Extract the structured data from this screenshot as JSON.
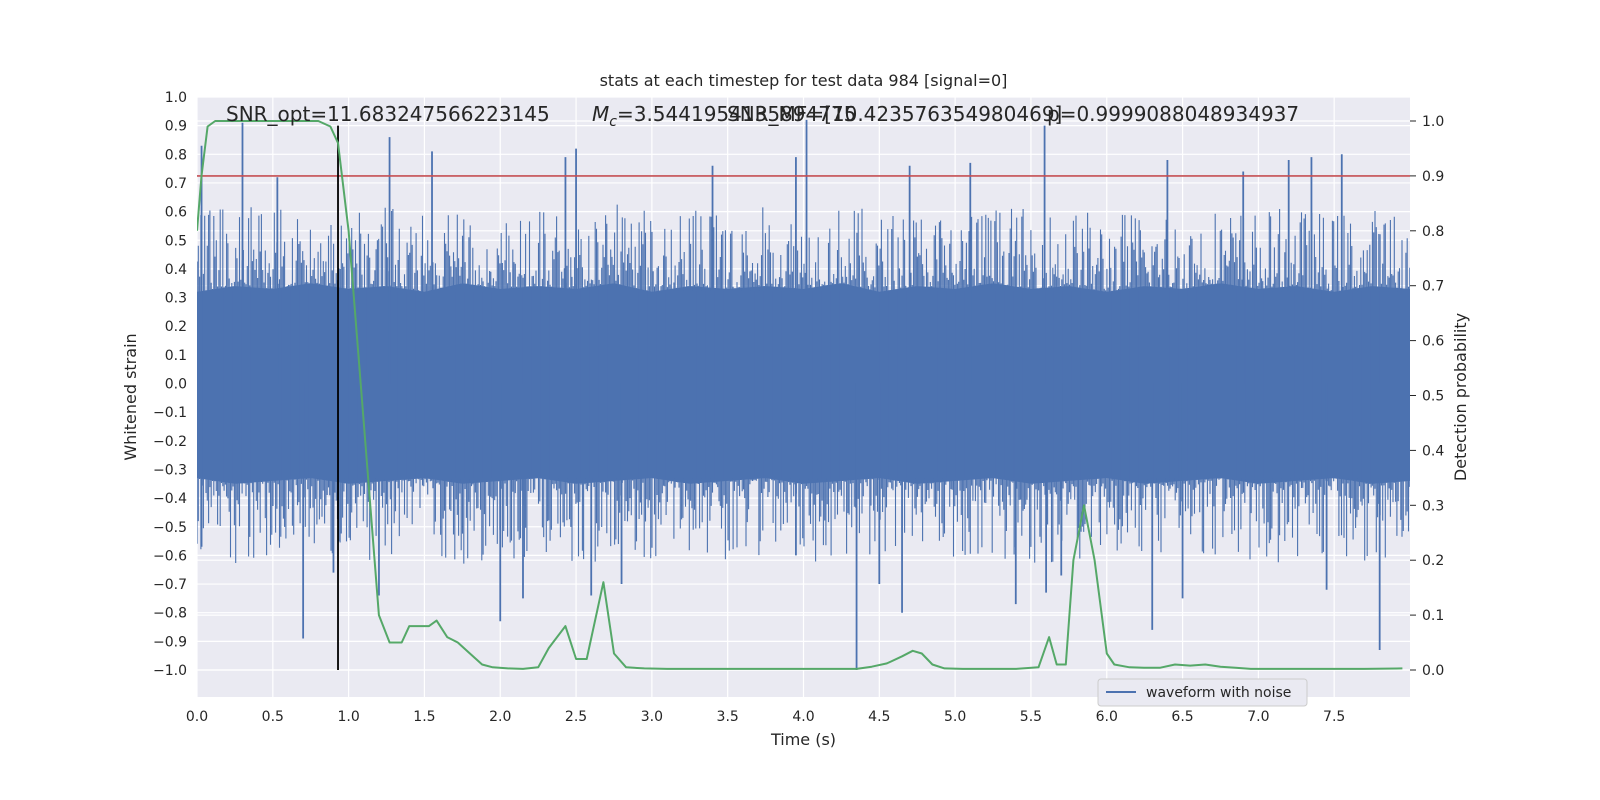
{
  "chart_data": {
    "type": "line",
    "title": "stats at each timestep for test data 984 [signal=0]",
    "xlabel": "Time (s)",
    "ylabel": "Whitened strain",
    "y2label": "Detection probability",
    "xlim": [
      0.0,
      8.0
    ],
    "ylim": [
      -1.0,
      1.0
    ],
    "y2lim": [
      0.0,
      1.0
    ],
    "x_ticks": [
      0.0,
      0.5,
      1.0,
      1.5,
      2.0,
      2.5,
      3.0,
      3.5,
      4.0,
      4.5,
      5.0,
      5.5,
      6.0,
      6.5,
      7.0,
      7.5
    ],
    "x_tick_labels": [
      "0.0",
      "0.5",
      "1.0",
      "1.5",
      "2.0",
      "2.5",
      "3.0",
      "3.5",
      "4.0",
      "4.5",
      "5.0",
      "5.5",
      "6.0",
      "6.5",
      "7.0",
      "7.5"
    ],
    "y_ticks": [
      -1.0,
      -0.9,
      -0.8,
      -0.7,
      -0.6,
      -0.5,
      -0.4,
      -0.3,
      -0.2,
      -0.1,
      0.0,
      0.1,
      0.2,
      0.3,
      0.4,
      0.5,
      0.6,
      0.7,
      0.8,
      0.9,
      1.0
    ],
    "y_tick_labels": [
      "−1.0",
      "−0.9",
      "−0.8",
      "−0.7",
      "−0.6",
      "−0.5",
      "−0.4",
      "−0.3",
      "−0.2",
      "−0.1",
      "0.0",
      "0.1",
      "0.2",
      "0.3",
      "0.4",
      "0.5",
      "0.6",
      "0.7",
      "0.8",
      "0.9",
      "1.0"
    ],
    "y2_ticks": [
      0.0,
      0.1,
      0.2,
      0.3,
      0.4,
      0.5,
      0.6,
      0.7,
      0.8,
      0.9,
      1.0
    ],
    "y2_tick_labels": [
      "0.0",
      "0.1",
      "0.2",
      "0.3",
      "0.4",
      "0.5",
      "0.6",
      "0.7",
      "0.8",
      "0.9",
      "1.0"
    ],
    "grid": true,
    "legend": {
      "entries": [
        "waveform with noise"
      ],
      "placement": "lower-right"
    },
    "annotations": {
      "snr_opt": "SNR_opt=11.683247566223145",
      "mc": "=3.5441954135894775",
      "mc_symbol_main": "M",
      "mc_symbol_sub": "c",
      "snr_mf": "SNR_MF=[10.423576354980469]",
      "p": "p=0.9999088048934937"
    },
    "threshold_line": {
      "axis": "y2",
      "value": 0.9,
      "color": "#c44e52"
    },
    "marker_line": {
      "x": 0.93,
      "from": -1.0,
      "to": 0.9,
      "color": "#000000"
    },
    "series": [
      {
        "name": "waveform with noise",
        "axis": "y",
        "color": "#4c72b0",
        "style": "dense noise band",
        "envelope_x": [
          0.0,
          0.25,
          0.5,
          0.75,
          1.0,
          1.25,
          1.5,
          1.75,
          2.0,
          2.25,
          2.5,
          2.75,
          3.0,
          3.25,
          3.5,
          3.75,
          4.0,
          4.25,
          4.5,
          4.75,
          5.0,
          5.25,
          5.5,
          5.75,
          6.0,
          6.25,
          6.5,
          6.75,
          7.0,
          7.25,
          7.5,
          7.75,
          8.0
        ],
        "core_upper": [
          0.32,
          0.34,
          0.33,
          0.35,
          0.33,
          0.34,
          0.32,
          0.35,
          0.33,
          0.34,
          0.33,
          0.35,
          0.32,
          0.34,
          0.33,
          0.34,
          0.33,
          0.35,
          0.32,
          0.34,
          0.33,
          0.35,
          0.33,
          0.34,
          0.32,
          0.34,
          0.33,
          0.35,
          0.33,
          0.34,
          0.32,
          0.34,
          0.33
        ],
        "core_lower": [
          -0.33,
          -0.35,
          -0.34,
          -0.33,
          -0.35,
          -0.34,
          -0.33,
          -0.35,
          -0.34,
          -0.33,
          -0.35,
          -0.34,
          -0.33,
          -0.35,
          -0.34,
          -0.33,
          -0.35,
          -0.34,
          -0.33,
          -0.35,
          -0.34,
          -0.33,
          -0.35,
          -0.34,
          -0.33,
          -0.35,
          -0.34,
          -0.33,
          -0.35,
          -0.34,
          -0.33,
          -0.35,
          -0.34
        ],
        "peaks_x": [
          0.03,
          0.3,
          0.53,
          1.27,
          1.55,
          2.43,
          2.5,
          3.4,
          3.95,
          4.02,
          4.7,
          5.1,
          5.59,
          6.4,
          6.9,
          7.2,
          7.35,
          7.55
        ],
        "peaks_y": [
          0.83,
          0.91,
          0.72,
          0.86,
          0.81,
          0.79,
          0.82,
          0.76,
          0.79,
          0.92,
          0.76,
          0.77,
          0.9,
          0.78,
          0.74,
          0.78,
          0.79,
          0.8
        ],
        "troughs_x": [
          0.03,
          0.7,
          0.9,
          1.2,
          2.0,
          2.15,
          2.6,
          2.8,
          3.95,
          4.35,
          4.5,
          4.65,
          5.4,
          5.6,
          5.7,
          6.3,
          6.5,
          7.45,
          7.8
        ],
        "troughs_y": [
          -0.57,
          -0.89,
          -0.66,
          -0.74,
          -0.83,
          -0.75,
          -0.74,
          -0.7,
          -0.6,
          -1.0,
          -0.7,
          -0.8,
          -0.77,
          -0.73,
          -0.67,
          -0.86,
          -0.75,
          -0.72,
          -0.93
        ]
      },
      {
        "name": "",
        "axis": "y2",
        "color": "#55a868",
        "x": [
          0.0,
          0.03,
          0.07,
          0.12,
          0.2,
          0.35,
          0.5,
          0.65,
          0.8,
          0.88,
          0.93,
          1.0,
          1.1,
          1.2,
          1.27,
          1.35,
          1.4,
          1.47,
          1.53,
          1.58,
          1.65,
          1.72,
          1.8,
          1.88,
          1.95,
          2.05,
          2.15,
          2.25,
          2.32,
          2.43,
          2.5,
          2.57,
          2.68,
          2.75,
          2.83,
          2.95,
          3.1,
          3.3,
          3.6,
          3.9,
          4.1,
          4.35,
          4.45,
          4.55,
          4.65,
          4.72,
          4.78,
          4.85,
          4.93,
          5.05,
          5.2,
          5.4,
          5.55,
          5.62,
          5.67,
          5.73,
          5.78,
          5.85,
          5.92,
          6.0,
          6.05,
          6.15,
          6.25,
          6.35,
          6.45,
          6.55,
          6.65,
          6.75,
          6.85,
          6.95,
          7.1,
          7.4,
          7.7,
          7.95
        ],
        "y": [
          0.8,
          0.9,
          0.99,
          1.0,
          1.0,
          1.0,
          1.0,
          1.0,
          1.0,
          0.99,
          0.96,
          0.8,
          0.45,
          0.1,
          0.05,
          0.05,
          0.08,
          0.08,
          0.08,
          0.09,
          0.06,
          0.05,
          0.03,
          0.01,
          0.005,
          0.003,
          0.002,
          0.005,
          0.04,
          0.08,
          0.02,
          0.02,
          0.16,
          0.03,
          0.005,
          0.003,
          0.002,
          0.002,
          0.002,
          0.002,
          0.002,
          0.002,
          0.006,
          0.012,
          0.025,
          0.035,
          0.03,
          0.01,
          0.003,
          0.002,
          0.002,
          0.002,
          0.005,
          0.06,
          0.01,
          0.01,
          0.2,
          0.3,
          0.2,
          0.03,
          0.01,
          0.005,
          0.004,
          0.004,
          0.01,
          0.008,
          0.01,
          0.006,
          0.004,
          0.002,
          0.002,
          0.002,
          0.002,
          0.003
        ]
      }
    ]
  }
}
